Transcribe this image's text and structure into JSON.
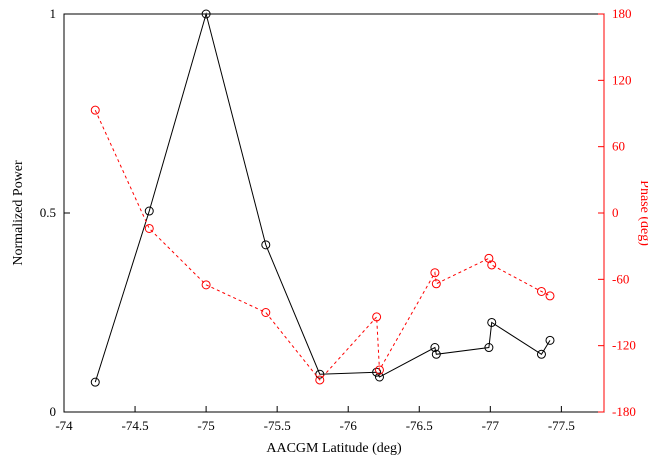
{
  "chart_data": {
    "type": "line",
    "xlabel": "AACGM Latitude (deg)",
    "ylabel": "Normalized Power",
    "y2label": "Phase (deg)",
    "xlim": [
      -74,
      -77.8
    ],
    "ylim": [
      0,
      1
    ],
    "y2lim": [
      -180,
      180
    ],
    "xticks": [
      {
        "value": -74,
        "label": "-74"
      },
      {
        "value": -74.5,
        "label": "-74.5"
      },
      {
        "value": -75,
        "label": "-75"
      },
      {
        "value": -75.5,
        "label": "-75.5"
      },
      {
        "value": -76,
        "label": "-76"
      },
      {
        "value": -76.5,
        "label": "-76.5"
      },
      {
        "value": -77,
        "label": "-77"
      },
      {
        "value": -77.5,
        "label": "-77.5"
      }
    ],
    "yticks": [
      {
        "value": 0,
        "label": "0"
      },
      {
        "value": 0.5,
        "label": "0.5"
      },
      {
        "value": 1,
        "label": "1"
      }
    ],
    "y2ticks": [
      {
        "value": -180,
        "label": "-180"
      },
      {
        "value": -120,
        "label": "-120"
      },
      {
        "value": -60,
        "label": "-60"
      },
      {
        "value": 0,
        "label": "0"
      },
      {
        "value": 60,
        "label": "60"
      },
      {
        "value": 120,
        "label": "120"
      },
      {
        "value": 180,
        "label": "180"
      }
    ],
    "grid": false,
    "colors": {
      "power": "#000000",
      "phase": "#ff0000",
      "right_axis": "#ff0000"
    },
    "series": [
      {
        "axis": "left",
        "style": "solid",
        "marker": "circle",
        "x": [
          -74.22,
          -74.6,
          -75.0,
          -75.42,
          -75.8,
          -76.2,
          -76.22,
          -76.61,
          -76.62,
          -76.99,
          -77.01,
          -77.36,
          -77.42
        ],
        "y": [
          0.075,
          0.505,
          1.0,
          0.42,
          0.095,
          0.1,
          0.088,
          0.162,
          0.145,
          0.162,
          0.225,
          0.145,
          0.18
        ]
      },
      {
        "axis": "right",
        "style": "dashed",
        "marker": "circle",
        "x": [
          -74.22,
          -74.6,
          -75.0,
          -75.42,
          -75.8,
          -76.2,
          -76.22,
          -76.61,
          -76.62,
          -76.99,
          -77.01,
          -77.36,
          -77.42
        ],
        "y": [
          93,
          -14,
          -65,
          -90,
          -151,
          -94,
          -142,
          -54,
          -64,
          -41,
          -47,
          -71,
          -75
        ]
      }
    ]
  }
}
